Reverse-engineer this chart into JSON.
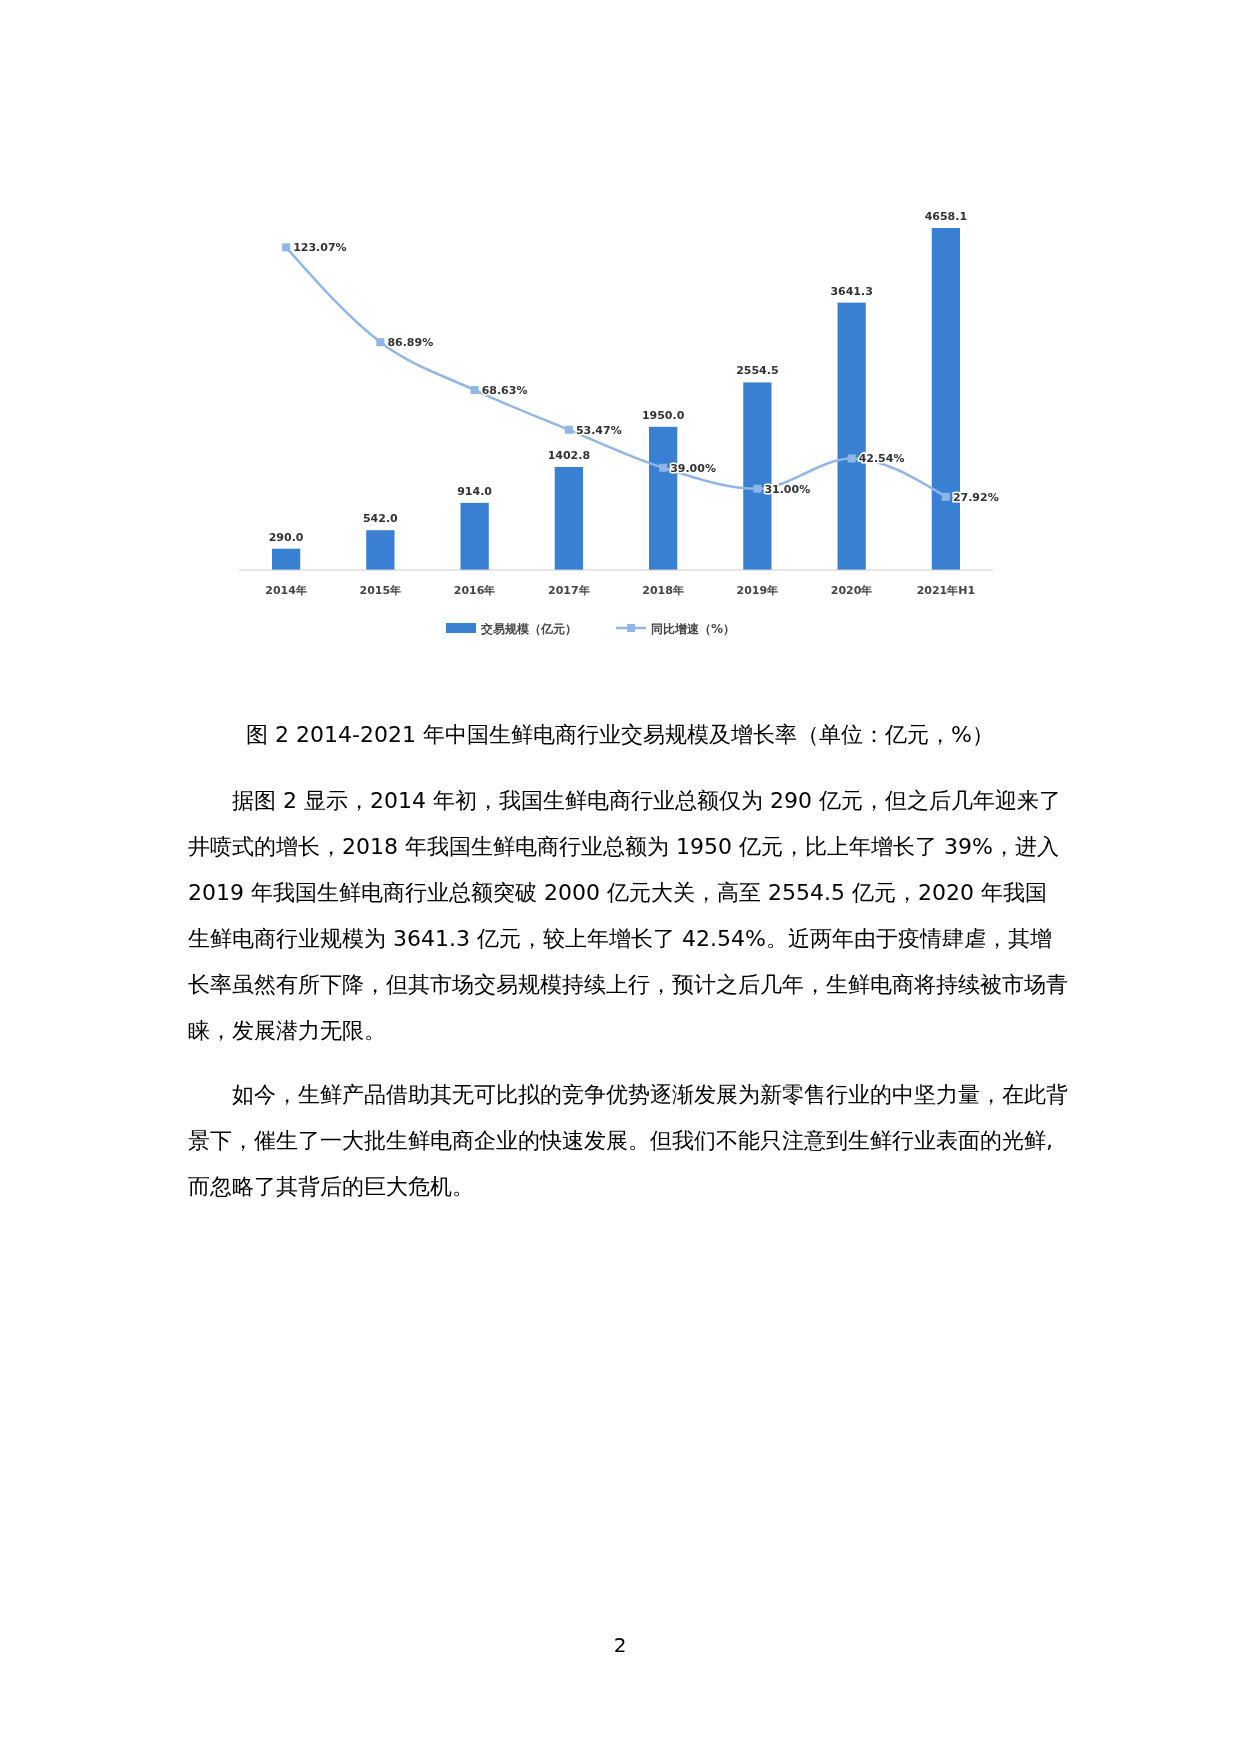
{
  "chart_data": {
    "type": "bar",
    "categories": [
      "2014年",
      "2015年",
      "2016年",
      "2017年",
      "2018年",
      "2019年",
      "2020年",
      "2021年H1"
    ],
    "series": [
      {
        "name": "交易规模（亿元）",
        "color": "#3a80d2",
        "values": [
          290.0,
          542.0,
          914.0,
          1402.8,
          1950.0,
          2554.5,
          3641.3,
          4658.1
        ],
        "value_labels": [
          "290.0",
          "542.0",
          "914.0",
          "1402.8",
          "1950.0",
          "2554.5",
          "3641.3",
          "4658.1"
        ]
      },
      {
        "type": "line",
        "axis": "y2",
        "name": "同比增速（%）",
        "color": "#8fb6e4",
        "marker": "square",
        "values": [
          123.07,
          86.89,
          68.63,
          53.47,
          39.0,
          31.0,
          42.54,
          27.92
        ],
        "value_labels": [
          "123.07%",
          "86.89%",
          "68.63%",
          "53.47%",
          "39.00%",
          "31.00%",
          "42.54%",
          "27.92%"
        ]
      }
    ],
    "legend": "bottom",
    "grid": false,
    "tick_labels": "x",
    "annotations": [
      "图 2 2014-2021 年中国生鲜电商行业交易规模及增长率（单位：亿元，%）",
      "据图 2 显示，2014 年初，我国生鲜电商行业总额仅为 290 亿元，但之后几年迎来了井喷式的增长，2018 年我国生鲜电商行业总额为 1950 亿元，比上年增长了 39%，进入 2019 年我国生鲜电商行业总额突破 2000 亿元大关，高至 2554.5 亿元，2020 年我国生鲜电商行业规模为 3641.3 亿元，较上年增长了 42.54%。近两年由于疫情肆虐，其增长率虽然有所下降，但其市场交易规模持续上行，预计之后几年，生鲜电商将持续被市场青睐，发展潜力无限。",
      "如今，生鲜产品借助其无可比拟的竞争优势逐渐发展为新零售行业的中坚力量，在此背景下，催生了一大批生鲜电商企业的快速发展。但我们不能只注意到生鲜行业表面的光鲜,而忽略了其背后的巨大危机。",
      "2"
    ]
  }
}
